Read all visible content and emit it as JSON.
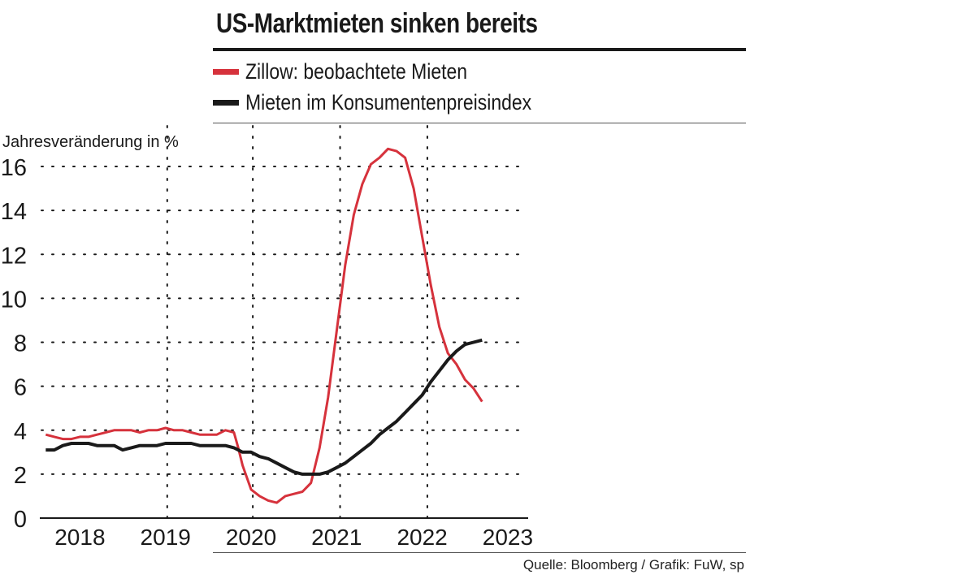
{
  "title": "US-Marktmieten sinken bereits",
  "source": "Quelle: Bloomberg / Grafik: FuW, sp",
  "colors": {
    "zillow": "#d6323c",
    "cpi": "#1a1a1a",
    "grid": "#1a1a1a",
    "axis": "#1a1a1a"
  },
  "chart_data": {
    "type": "line",
    "title": "US-Marktmieten sinken bereits",
    "ylabel": "Jahresveränderung in %",
    "xlabel": "",
    "ylim": [
      0,
      16
    ],
    "xlim": [
      2017.55,
      2023.2
    ],
    "yticks": [
      0,
      2,
      4,
      6,
      8,
      10,
      12,
      14,
      16
    ],
    "xticks": [
      {
        "label": "2018",
        "pos": 2018.0
      },
      {
        "label": "2019",
        "pos": 2019.0
      },
      {
        "label": "2020",
        "pos": 2020.0
      },
      {
        "label": "2021",
        "pos": 2021.0
      },
      {
        "label": "2022",
        "pos": 2022.0
      },
      {
        "label": "2023",
        "pos": 2023.0
      }
    ],
    "vgrid": [
      2019.02,
      2020.02,
      2021.04,
      2022.06
    ],
    "legend_position": "top-left",
    "series": [
      {
        "name": "Zillow: beobachtete Mieten",
        "color": "#d6323c",
        "x": [
          2017.6,
          2017.7,
          2017.8,
          2017.9,
          2018.0,
          2018.1,
          2018.2,
          2018.3,
          2018.4,
          2018.5,
          2018.6,
          2018.7,
          2018.8,
          2018.9,
          2019.0,
          2019.1,
          2019.2,
          2019.3,
          2019.4,
          2019.5,
          2019.6,
          2019.7,
          2019.8,
          2019.85,
          2019.9,
          2020.0,
          2020.1,
          2020.2,
          2020.3,
          2020.4,
          2020.5,
          2020.6,
          2020.7,
          2020.8,
          2020.9,
          2021.0,
          2021.1,
          2021.2,
          2021.3,
          2021.4,
          2021.5,
          2021.6,
          2021.7,
          2021.8,
          2021.9,
          2022.0,
          2022.1,
          2022.2,
          2022.3,
          2022.4,
          2022.5,
          2022.6,
          2022.7
        ],
        "y": [
          3.8,
          3.7,
          3.6,
          3.6,
          3.7,
          3.7,
          3.8,
          3.9,
          4.0,
          4.0,
          4.0,
          3.9,
          4.0,
          4.0,
          4.1,
          4.0,
          4.0,
          3.9,
          3.8,
          3.8,
          3.8,
          4.0,
          3.9,
          3.2,
          2.4,
          1.3,
          1.0,
          0.8,
          0.7,
          1.0,
          1.1,
          1.2,
          1.6,
          3.2,
          5.5,
          8.5,
          11.5,
          13.8,
          15.2,
          16.1,
          16.4,
          16.8,
          16.7,
          16.4,
          15.0,
          12.8,
          10.6,
          8.7,
          7.5,
          7.0,
          6.3,
          5.9,
          5.3
        ]
      },
      {
        "name": "Mieten im Konsumentenpreisindex",
        "color": "#1a1a1a",
        "x": [
          2017.6,
          2017.7,
          2017.8,
          2017.9,
          2018.0,
          2018.1,
          2018.2,
          2018.3,
          2018.4,
          2018.5,
          2018.6,
          2018.7,
          2018.8,
          2018.9,
          2019.0,
          2019.1,
          2019.2,
          2019.3,
          2019.4,
          2019.5,
          2019.6,
          2019.7,
          2019.8,
          2019.9,
          2020.0,
          2020.1,
          2020.2,
          2020.3,
          2020.4,
          2020.5,
          2020.6,
          2020.7,
          2020.8,
          2020.9,
          2021.0,
          2021.1,
          2021.2,
          2021.3,
          2021.4,
          2021.5,
          2021.6,
          2021.7,
          2021.8,
          2021.9,
          2022.0,
          2022.1,
          2022.2,
          2022.3,
          2022.4,
          2022.5,
          2022.6,
          2022.7
        ],
        "y": [
          3.1,
          3.1,
          3.3,
          3.4,
          3.4,
          3.4,
          3.3,
          3.3,
          3.3,
          3.1,
          3.2,
          3.3,
          3.3,
          3.3,
          3.4,
          3.4,
          3.4,
          3.4,
          3.3,
          3.3,
          3.3,
          3.3,
          3.2,
          3.0,
          3.0,
          2.8,
          2.7,
          2.5,
          2.3,
          2.1,
          2.0,
          2.0,
          2.0,
          2.1,
          2.3,
          2.5,
          2.8,
          3.1,
          3.4,
          3.8,
          4.1,
          4.4,
          4.8,
          5.2,
          5.6,
          6.2,
          6.7,
          7.2,
          7.6,
          7.9,
          8.0,
          8.1
        ]
      }
    ]
  }
}
